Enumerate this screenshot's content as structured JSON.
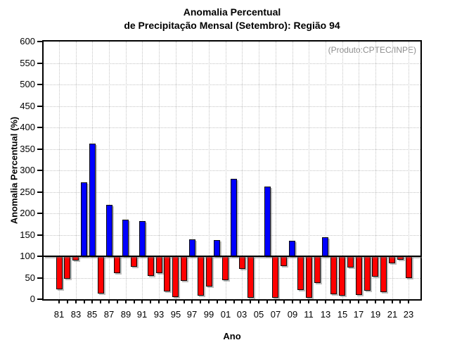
{
  "title": {
    "line1": "Anomalia Percentual",
    "line2": "de Precipitação Mensal (Setembro): Região 94"
  },
  "annotation": "(Produto:CPTEC/INPE)",
  "chart_data": {
    "type": "bar",
    "title": "Anomalia Percentual de Precipitação Mensal (Setembro): Região 94",
    "xlabel": "Ano",
    "ylabel": "Anomalia Percentual (%)",
    "ylim": [
      0,
      600
    ],
    "ytick_step": 50,
    "baseline": 100,
    "grid": "dotted, horizontal every 50 and vertical every 2 years",
    "legend": "none",
    "colors": {
      "above_baseline": "#0000ff",
      "below_baseline": "#ff0000",
      "annotation_gray": "#8f8f8f"
    },
    "color_rule": "blue bar if value > 100, red bar if value < 100, no bar at exactly 100",
    "years": [
      1981,
      1982,
      1983,
      1984,
      1985,
      1986,
      1987,
      1988,
      1989,
      1990,
      1991,
      1992,
      1993,
      1994,
      1995,
      1996,
      1997,
      1998,
      1999,
      2000,
      2001,
      2002,
      2003,
      2004,
      2005,
      2006,
      2007,
      2008,
      2009,
      2010,
      2011,
      2012,
      2013,
      2014,
      2015,
      2016,
      2017,
      2018,
      2019,
      2020,
      2021,
      2022,
      2023
    ],
    "values": [
      23,
      48,
      90,
      272,
      362,
      13,
      220,
      60,
      186,
      75,
      182,
      54,
      60,
      18,
      5,
      43,
      140,
      9,
      30,
      137,
      44,
      280,
      70,
      4,
      100,
      262,
      4,
      77,
      136,
      21,
      4,
      38,
      144,
      12,
      8,
      74,
      10,
      20,
      52,
      17,
      84,
      92,
      50
    ],
    "x_tick_labels": [
      "81",
      "83",
      "85",
      "87",
      "89",
      "91",
      "93",
      "95",
      "97",
      "99",
      "01",
      "03",
      "05",
      "07",
      "09",
      "11",
      "13",
      "15",
      "17",
      "19",
      "21",
      "23"
    ],
    "y_tick_labels": [
      "0",
      "50",
      "100",
      "150",
      "200",
      "250",
      "300",
      "350",
      "400",
      "450",
      "500",
      "550",
      "600"
    ]
  }
}
